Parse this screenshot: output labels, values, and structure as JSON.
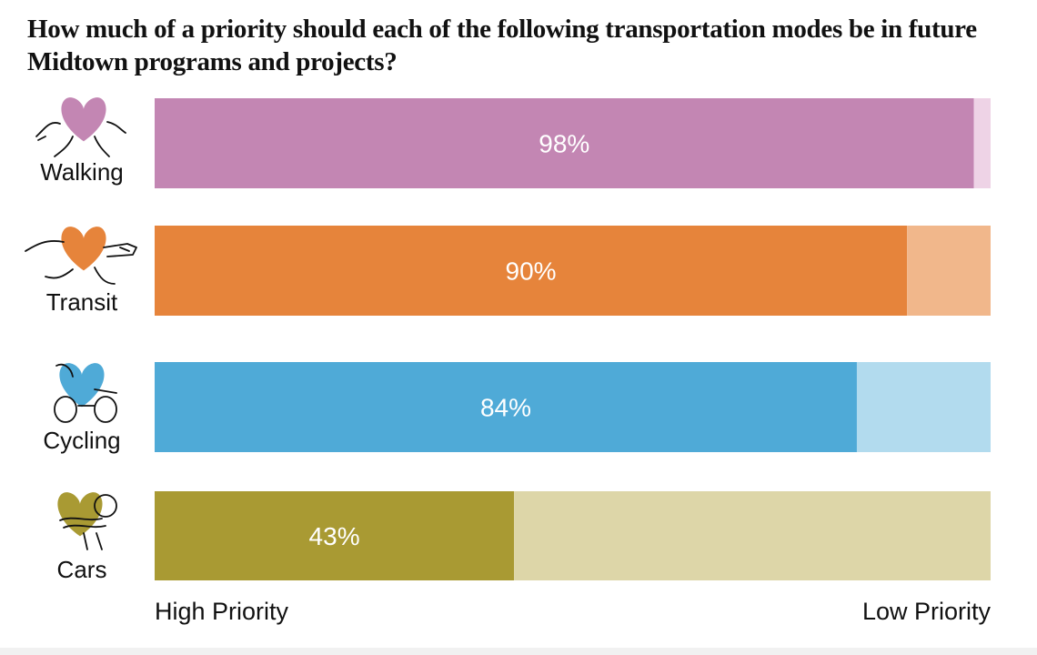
{
  "title": "How much of a priority should each of the following transportation modes be in future Midtown programs and projects?",
  "chart_data": {
    "type": "bar",
    "orientation": "horizontal",
    "stacked": true,
    "categories": [
      "Walking",
      "Transit",
      "Cycling",
      "Cars"
    ],
    "series": [
      {
        "name": "High Priority",
        "values": [
          98,
          90,
          84,
          43
        ]
      },
      {
        "name": "Low Priority",
        "values": [
          2,
          10,
          16,
          57
        ]
      }
    ],
    "data_labels": [
      "98%",
      "90%",
      "84%",
      "43%"
    ],
    "xlim": [
      0,
      100
    ],
    "axis_left_label": "High Priority",
    "axis_right_label": "Low Priority",
    "grid": false,
    "legend": "none",
    "colors": {
      "high": [
        "#c386b3",
        "#e6843b",
        "#4faad7",
        "#a99a33"
      ],
      "low": [
        "#eed3e6",
        "#f1b78b",
        "#b2dbee",
        "#ddd6a8"
      ]
    },
    "icons": [
      "walking-heart-icon",
      "transit-heart-icon",
      "cycling-heart-icon",
      "car-heart-icon"
    ]
  }
}
